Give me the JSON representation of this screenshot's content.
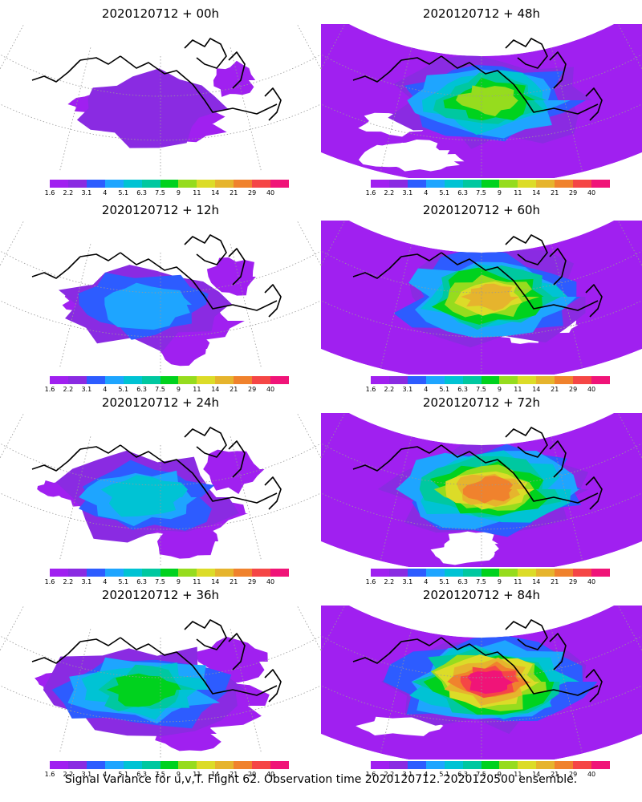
{
  "panels": [
    {
      "title": "2020120712 + 00h",
      "level": 0
    },
    {
      "title": "2020120712 + 48h",
      "level": 4
    },
    {
      "title": "2020120712 + 12h",
      "level": 1
    },
    {
      "title": "2020120712 + 60h",
      "level": 5
    },
    {
      "title": "2020120712 + 24h",
      "level": 2
    },
    {
      "title": "2020120712 + 72h",
      "level": 6
    },
    {
      "title": "2020120712 + 36h",
      "level": 3
    },
    {
      "title": "2020120712 + 84h",
      "level": 7
    }
  ],
  "colorbar": {
    "labels": [
      "1.6",
      "2.2",
      "3.1",
      "4",
      "5.1",
      "6.3",
      "7.5",
      "9",
      "11",
      "14",
      "21",
      "29",
      "40"
    ],
    "colors": [
      "#a020f0",
      "#8a2be2",
      "#2d5cff",
      "#1ea5ff",
      "#00c3d4",
      "#00c8a0",
      "#00d21e",
      "#96dc1e",
      "#dcdc28",
      "#e6b42d",
      "#f0822d",
      "#f54646",
      "#f01478"
    ]
  },
  "caption": "Signal Variance for u,v,T. Flight 62. Observation time 2020120712. 2020120500 ensemble.",
  "colors": {
    "coastline": "#000000",
    "gridlines": "#999999",
    "missing_region": "#ffffff"
  }
}
